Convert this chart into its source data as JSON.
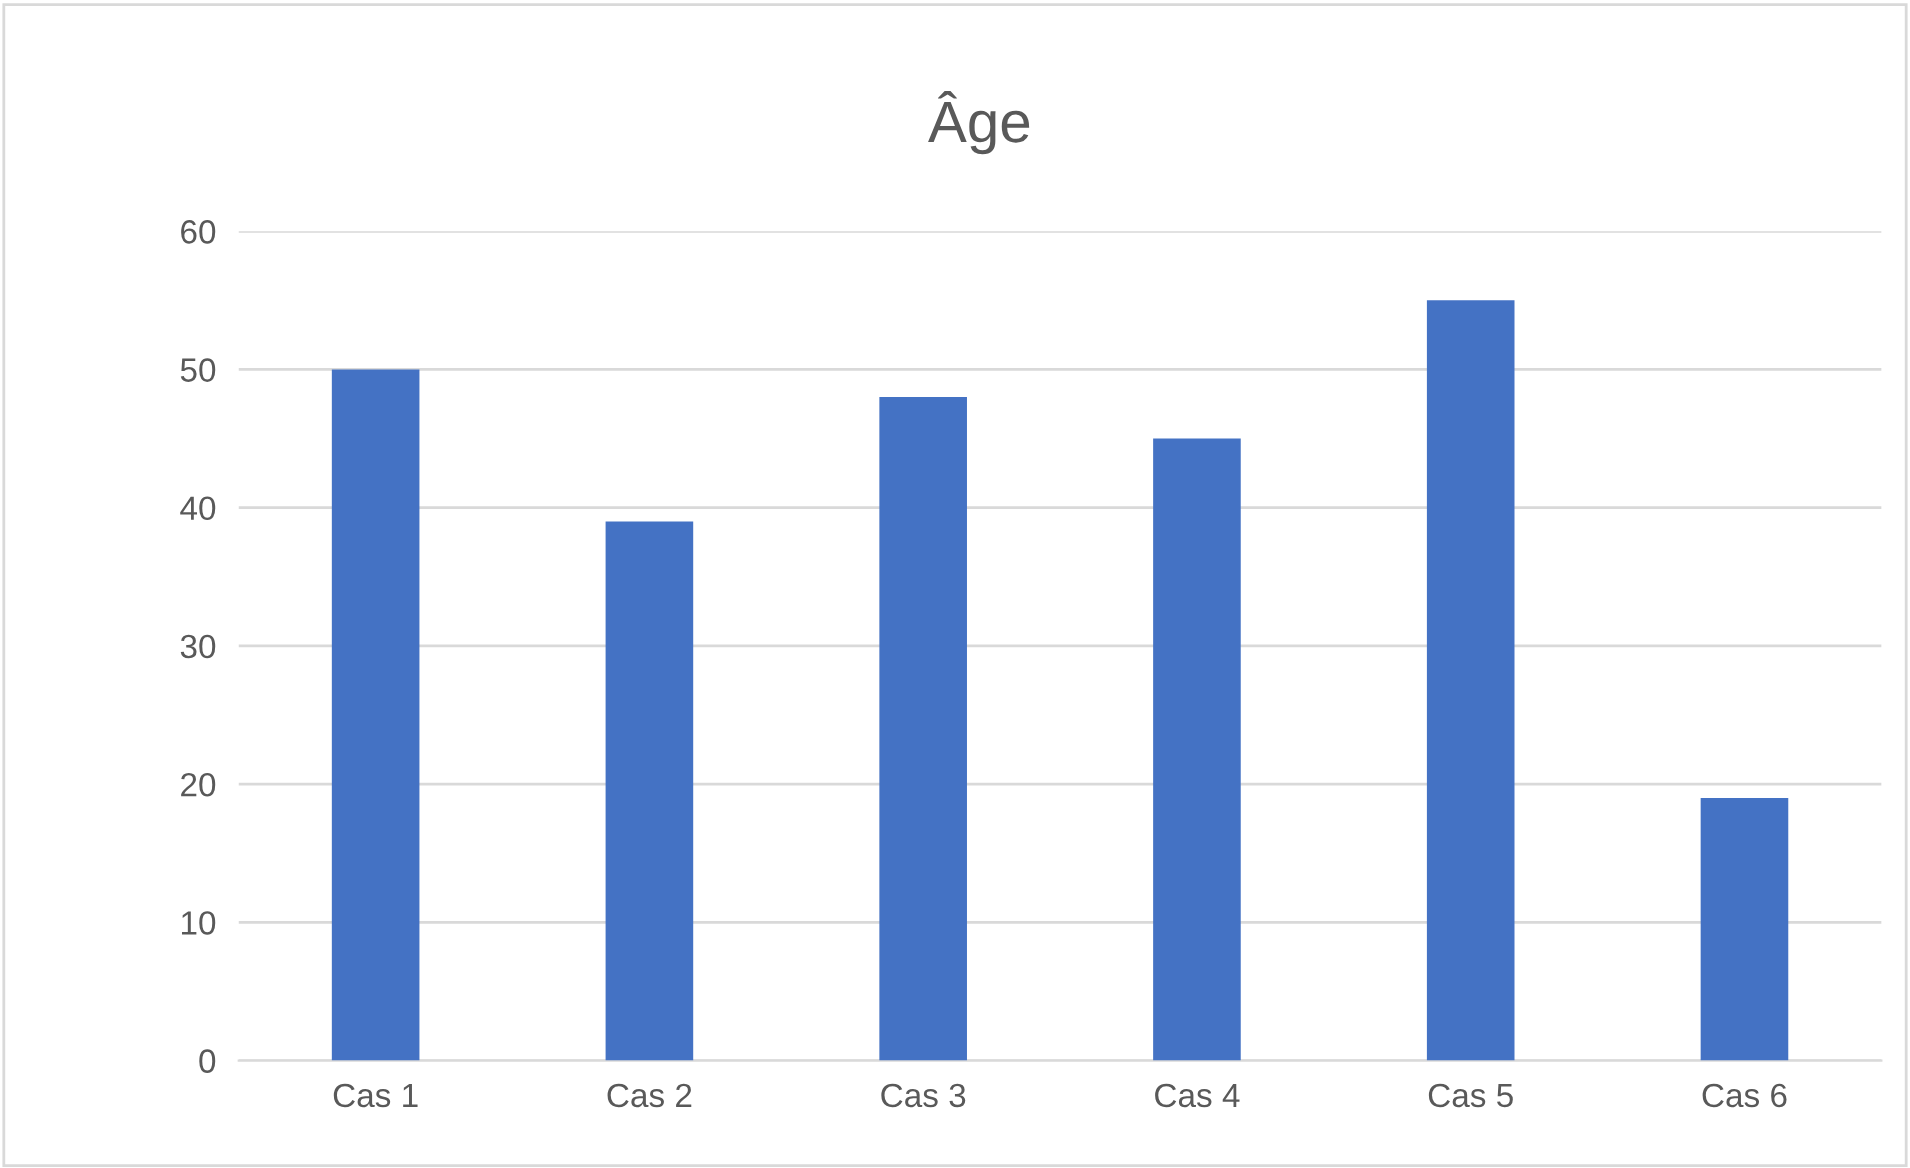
{
  "chart_data": {
    "type": "bar",
    "title": "Âge",
    "categories": [
      "Cas 1",
      "Cas 2",
      "Cas 3",
      "Cas 4",
      "Cas 5",
      "Cas 6"
    ],
    "values": [
      50,
      39,
      48,
      45,
      55,
      19
    ],
    "color": "#4472c4",
    "ylim": [
      0,
      60
    ],
    "yticks": [
      0,
      10,
      20,
      30,
      40,
      50,
      60
    ],
    "grid": "y"
  }
}
